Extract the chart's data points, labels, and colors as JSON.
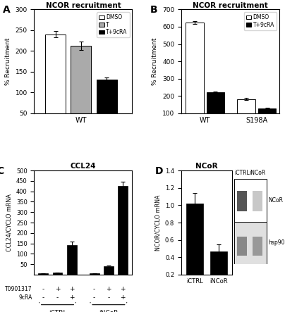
{
  "panel_A": {
    "title": "NCOR recruitment",
    "ylabel": "% Recruitment",
    "xlabel": "WT",
    "bars": [
      240,
      212,
      132
    ],
    "errors": [
      8,
      10,
      5
    ],
    "colors": [
      "white",
      "#aaaaaa",
      "black"
    ],
    "legend_labels": [
      "DMSO",
      "T",
      "T+9cRA"
    ],
    "ylim": [
      50,
      300
    ],
    "yticks": [
      50,
      100,
      150,
      200,
      250,
      300
    ]
  },
  "panel_B": {
    "title": "NCOR recruitment",
    "ylabel": "% Recruitment",
    "groups": [
      "WT",
      "S198A"
    ],
    "bars_dmso": [
      625,
      182
    ],
    "bars_t9cra": [
      222,
      130
    ],
    "errors_dmso": [
      8,
      6
    ],
    "errors_t9cra": [
      5,
      4
    ],
    "legend_labels": [
      "DMSO",
      "T+9cRA"
    ],
    "ylim": [
      100,
      700
    ],
    "yticks": [
      100,
      200,
      300,
      400,
      500,
      600,
      700
    ]
  },
  "panel_C": {
    "title": "CCL24",
    "ylabel": "CCL24/CYCLO mRNA",
    "values": [
      5,
      8,
      140,
      5,
      40,
      425
    ],
    "errors": [
      1,
      1,
      18,
      1,
      5,
      20
    ],
    "color": "black",
    "ylim": [
      0,
      500
    ],
    "yticks": [
      50,
      100,
      150,
      200,
      250,
      300,
      350,
      400,
      450,
      500
    ],
    "t0901317": [
      "-",
      "+",
      "+",
      "-",
      "+",
      "+"
    ],
    "9cRA": [
      "-",
      "-",
      "+",
      "-",
      "-",
      "+"
    ],
    "group_labels": [
      "iCTRL",
      "iNCoR"
    ]
  },
  "panel_D": {
    "title": "NCoR",
    "ylabel": "NCOR/CYCLO mRNA",
    "categories": [
      "iCTRL",
      "iNCoR"
    ],
    "values": [
      1.02,
      0.47
    ],
    "errors": [
      0.12,
      0.08
    ],
    "color": "black",
    "ylim": [
      0.2,
      1.4
    ],
    "yticks": [
      0.2,
      0.4,
      0.6,
      0.8,
      1.0,
      1.2,
      1.4
    ]
  }
}
